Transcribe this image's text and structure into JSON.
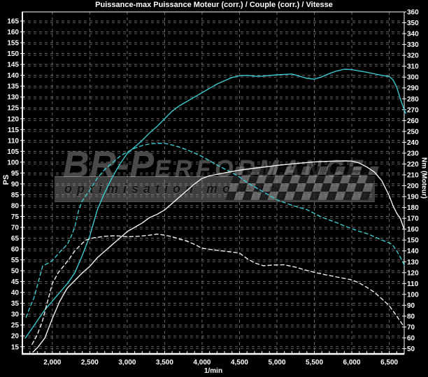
{
  "watermark": {
    "brand_large": "BR-P",
    "brand_small": "ERFORMANCE",
    "tagline": "optimisation moteur"
  },
  "colors": {
    "background": "#000000",
    "accent_cyan": "#3bc8cf",
    "curve_white": "#f1f1f1",
    "grid_major": "#6a6a6a",
    "grid_minor": "#575757",
    "axis": "#ffffff"
  },
  "chart_data": {
    "type": "line",
    "title": "Puissance-max Puissance Moteur (corr.) / Couple (corr.) / Vitesse",
    "grid": true,
    "legend": "none",
    "x_axis": {
      "label": "1/min",
      "min": 1600,
      "max": 6700,
      "ticks": [
        2000,
        2500,
        3000,
        3500,
        4000,
        4500,
        5000,
        5500,
        6000,
        6500
      ],
      "tick_labels": [
        "2,000",
        "2,500",
        "3,000",
        "3,500",
        "4,000",
        "4,500",
        "5,000",
        "5,500",
        "6,000",
        "6,500"
      ],
      "minor_tick_step": 100
    },
    "y_left": {
      "label": "PS",
      "unit": "PS",
      "plot_min": 11.7,
      "plot_max": 169.2,
      "ticks": [
        165,
        160,
        155,
        150,
        145,
        140,
        135,
        130,
        125,
        120,
        115,
        110,
        105,
        100,
        95,
        90,
        85,
        80,
        75,
        70,
        65,
        60,
        55,
        50,
        45,
        40,
        35,
        30,
        25,
        20,
        15
      ]
    },
    "y_right": {
      "label": "Nm (Moteur)",
      "unit": "Nm",
      "plot_min": 45.2,
      "plot_max": 360,
      "ticks": [
        360,
        350,
        340,
        330,
        320,
        310,
        300,
        290,
        280,
        270,
        260,
        250,
        240,
        230,
        220,
        210,
        200,
        190,
        180,
        170,
        160,
        150,
        140,
        130,
        120,
        110,
        100,
        90,
        80,
        70,
        60,
        50
      ]
    },
    "series": [
      {
        "id": "cyan-solid",
        "label": "Puissance Moteur (corr.)",
        "color": "cyan",
        "style": "solid",
        "axis": "left",
        "unit": "PS",
        "points": [
          [
            1640,
            19
          ],
          [
            1700,
            22
          ],
          [
            1800,
            27
          ],
          [
            1900,
            32
          ],
          [
            2000,
            36
          ],
          [
            2100,
            40
          ],
          [
            2200,
            44
          ],
          [
            2300,
            49
          ],
          [
            2400,
            57
          ],
          [
            2500,
            66
          ],
          [
            2600,
            78
          ],
          [
            2700,
            86
          ],
          [
            2800,
            93
          ],
          [
            2900,
            99
          ],
          [
            3000,
            104
          ],
          [
            3100,
            107
          ],
          [
            3200,
            110
          ],
          [
            3300,
            113.5
          ],
          [
            3400,
            116.5
          ],
          [
            3500,
            120
          ],
          [
            3600,
            123.5
          ],
          [
            3700,
            126
          ],
          [
            3800,
            128
          ],
          [
            3900,
            130
          ],
          [
            4000,
            132
          ],
          [
            4100,
            134
          ],
          [
            4200,
            136
          ],
          [
            4300,
            137.5
          ],
          [
            4400,
            139
          ],
          [
            4500,
            139.8
          ],
          [
            4600,
            140
          ],
          [
            4700,
            139.6
          ],
          [
            4800,
            139.6
          ],
          [
            4900,
            139.9
          ],
          [
            5000,
            140.2
          ],
          [
            5100,
            140.4
          ],
          [
            5200,
            140.6
          ],
          [
            5300,
            139.6
          ],
          [
            5400,
            138.6
          ],
          [
            5500,
            138.2
          ],
          [
            5600,
            139.3
          ],
          [
            5700,
            140.8
          ],
          [
            5800,
            142
          ],
          [
            5900,
            142.8
          ],
          [
            6000,
            142.6
          ],
          [
            6100,
            142
          ],
          [
            6200,
            141.4
          ],
          [
            6300,
            140.7
          ],
          [
            6400,
            140
          ],
          [
            6500,
            139.4
          ],
          [
            6550,
            138
          ],
          [
            6600,
            134.5
          ],
          [
            6650,
            129
          ],
          [
            6700,
            124
          ],
          [
            6720,
            122.5
          ]
        ]
      },
      {
        "id": "cyan-dashed",
        "label": "Couple (corr.)",
        "color": "cyan",
        "style": "dashed",
        "axis": "right",
        "unit": "Nm",
        "points": [
          [
            1650,
            79
          ],
          [
            1700,
            88
          ],
          [
            1750,
            96
          ],
          [
            1800,
            108
          ],
          [
            1870,
            126
          ],
          [
            1950,
            129
          ],
          [
            2000,
            131
          ],
          [
            2100,
            139
          ],
          [
            2200,
            146
          ],
          [
            2250,
            153
          ],
          [
            2300,
            162
          ],
          [
            2350,
            177
          ],
          [
            2400,
            186
          ],
          [
            2500,
            196
          ],
          [
            2600,
            207
          ],
          [
            2700,
            215
          ],
          [
            2800,
            221
          ],
          [
            2900,
            227
          ],
          [
            3000,
            231
          ],
          [
            3100,
            234.5
          ],
          [
            3200,
            237
          ],
          [
            3300,
            238.5
          ],
          [
            3400,
            239
          ],
          [
            3500,
            239
          ],
          [
            3600,
            237.5
          ],
          [
            3700,
            235.5
          ],
          [
            3800,
            233
          ],
          [
            3900,
            230
          ],
          [
            4000,
            227
          ],
          [
            4100,
            223
          ],
          [
            4200,
            219
          ],
          [
            4300,
            215.5
          ],
          [
            4400,
            212
          ],
          [
            4500,
            208
          ],
          [
            4600,
            203
          ],
          [
            4700,
            199
          ],
          [
            4800,
            195
          ],
          [
            4900,
            191
          ],
          [
            5000,
            187
          ],
          [
            5100,
            184.5
          ],
          [
            5200,
            182
          ],
          [
            5300,
            180
          ],
          [
            5400,
            178
          ],
          [
            5500,
            174.5
          ],
          [
            5600,
            171
          ],
          [
            5700,
            168.5
          ],
          [
            5800,
            166
          ],
          [
            5900,
            163
          ],
          [
            6000,
            160.5
          ],
          [
            6100,
            158
          ],
          [
            6200,
            156
          ],
          [
            6300,
            153
          ],
          [
            6400,
            150
          ],
          [
            6500,
            147.5
          ],
          [
            6550,
            145
          ],
          [
            6600,
            140
          ],
          [
            6650,
            134
          ],
          [
            6700,
            127
          ]
        ]
      },
      {
        "id": "white-solid",
        "label": "Vitesse",
        "color": "white",
        "style": "solid",
        "axis": "left",
        "unit": "PS",
        "points": [
          [
            1740,
            12.5
          ],
          [
            1800,
            14.5
          ],
          [
            1900,
            19
          ],
          [
            2000,
            28
          ],
          [
            2100,
            36
          ],
          [
            2200,
            42
          ],
          [
            2300,
            45.5
          ],
          [
            2400,
            49
          ],
          [
            2500,
            52
          ],
          [
            2600,
            56
          ],
          [
            2700,
            59
          ],
          [
            2800,
            62
          ],
          [
            2900,
            65
          ],
          [
            3000,
            68
          ],
          [
            3100,
            70
          ],
          [
            3200,
            72
          ],
          [
            3300,
            74.5
          ],
          [
            3400,
            76
          ],
          [
            3500,
            78
          ],
          [
            3600,
            81
          ],
          [
            3700,
            84
          ],
          [
            3800,
            87
          ],
          [
            3900,
            90
          ],
          [
            4000,
            92.5
          ],
          [
            4100,
            93.7
          ],
          [
            4200,
            94.4
          ],
          [
            4400,
            95.7
          ],
          [
            4500,
            96.3
          ],
          [
            4700,
            97.2
          ],
          [
            5000,
            98.5
          ],
          [
            5200,
            99.2
          ],
          [
            5500,
            100.1
          ],
          [
            5700,
            100.4
          ],
          [
            5900,
            100.6
          ],
          [
            6000,
            100.5
          ],
          [
            6100,
            99.6
          ],
          [
            6200,
            97.8
          ],
          [
            6300,
            95.5
          ],
          [
            6400,
            91.5
          ],
          [
            6450,
            88
          ],
          [
            6500,
            84.5
          ],
          [
            6550,
            80
          ],
          [
            6600,
            76.5
          ],
          [
            6650,
            74
          ],
          [
            6700,
            69
          ]
        ]
      },
      {
        "id": "white-dashed",
        "label": "",
        "color": "white",
        "style": "dashed",
        "axis": "right",
        "unit": "Nm",
        "points": [
          [
            1730,
            54
          ],
          [
            1800,
            63
          ],
          [
            1870,
            76
          ],
          [
            1950,
            97
          ],
          [
            2000,
            110
          ],
          [
            2080,
            120
          ],
          [
            2150,
            126
          ],
          [
            2230,
            133
          ],
          [
            2300,
            140
          ],
          [
            2400,
            147
          ],
          [
            2450,
            150
          ],
          [
            2550,
            152
          ],
          [
            2700,
            153.5
          ],
          [
            2850,
            154
          ],
          [
            3000,
            153
          ],
          [
            3150,
            153.5
          ],
          [
            3300,
            154.5
          ],
          [
            3400,
            155.5
          ],
          [
            3500,
            154.5
          ],
          [
            3600,
            153
          ],
          [
            3700,
            151
          ],
          [
            3800,
            149
          ],
          [
            3900,
            146
          ],
          [
            4000,
            142.5
          ],
          [
            4150,
            141
          ],
          [
            4300,
            139.8
          ],
          [
            4500,
            138
          ],
          [
            4600,
            133
          ],
          [
            4700,
            129
          ],
          [
            4820,
            126.3
          ],
          [
            4950,
            127
          ],
          [
            5100,
            127.2
          ],
          [
            5250,
            125
          ],
          [
            5400,
            122
          ],
          [
            5500,
            120.3
          ],
          [
            5650,
            118
          ],
          [
            5800,
            116
          ],
          [
            6000,
            113.4
          ],
          [
            6100,
            110.5
          ],
          [
            6200,
            106.5
          ],
          [
            6300,
            102
          ],
          [
            6400,
            96
          ],
          [
            6500,
            89.5
          ],
          [
            6570,
            83
          ],
          [
            6620,
            78
          ],
          [
            6680,
            72
          ]
        ]
      }
    ]
  }
}
